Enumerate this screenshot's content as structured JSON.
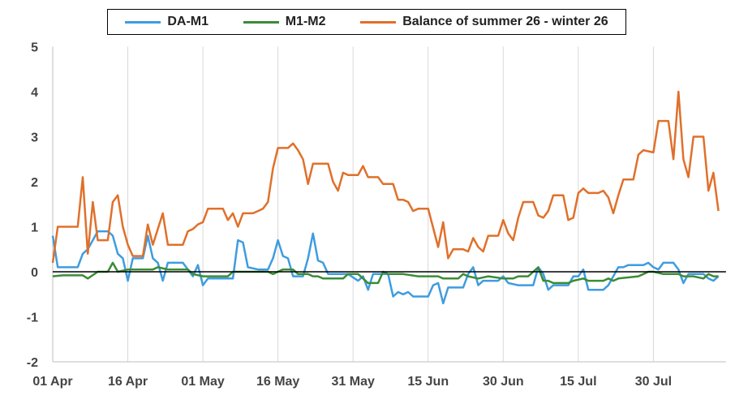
{
  "chart_data": {
    "type": "line",
    "title": "",
    "xlabel": "",
    "ylabel": "",
    "ylim": [
      -2,
      5
    ],
    "yticks": [
      -2,
      -1,
      0,
      1,
      2,
      3,
      4,
      5
    ],
    "x_axis": {
      "start": "01 Apr",
      "end": "05 Aug",
      "tick_labels": [
        "01 Apr",
        "16 Apr",
        "01 May",
        "16 May",
        "31 May",
        "15 Jun",
        "30 Jun",
        "15 Jul",
        "30 Jul"
      ]
    },
    "grid": "vertical",
    "zero_line": true,
    "legend_position": "top",
    "series": [
      {
        "name": "DA-M1",
        "color": "#3e9ce0",
        "points": [
          [
            0,
            0.8
          ],
          [
            1,
            0.1
          ],
          [
            5,
            0.1
          ],
          [
            6,
            0.4
          ],
          [
            7,
            0.5
          ],
          [
            9,
            0.9
          ],
          [
            11,
            0.9
          ],
          [
            12,
            0.8
          ],
          [
            13,
            0.4
          ],
          [
            14,
            0.3
          ],
          [
            15,
            -0.2
          ],
          [
            16,
            0.3
          ],
          [
            18,
            0.3
          ],
          [
            19,
            0.8
          ],
          [
            20,
            0.3
          ],
          [
            21,
            0.2
          ],
          [
            22,
            -0.2
          ],
          [
            23,
            0.2
          ],
          [
            26,
            0.2
          ],
          [
            27,
            0.05
          ],
          [
            28,
            -0.1
          ],
          [
            29,
            0.15
          ],
          [
            30,
            -0.3
          ],
          [
            31,
            -0.15
          ],
          [
            36,
            -0.15
          ],
          [
            37,
            0.7
          ],
          [
            38,
            0.65
          ],
          [
            39,
            0.1
          ],
          [
            41,
            0.05
          ],
          [
            43,
            0.05
          ],
          [
            44,
            0.3
          ],
          [
            45,
            0.7
          ],
          [
            46,
            0.35
          ],
          [
            47,
            0.3
          ],
          [
            48,
            -0.1
          ],
          [
            50,
            -0.1
          ],
          [
            51,
            0.3
          ],
          [
            52,
            0.85
          ],
          [
            53,
            0.25
          ],
          [
            54,
            0.2
          ],
          [
            55,
            -0.05
          ],
          [
            59,
            -0.05
          ],
          [
            61,
            -0.2
          ],
          [
            62,
            -0.1
          ],
          [
            63,
            -0.4
          ],
          [
            64,
            -0.05
          ],
          [
            67,
            -0.05
          ],
          [
            68,
            -0.55
          ],
          [
            69,
            -0.45
          ],
          [
            70,
            -0.5
          ],
          [
            71,
            -0.45
          ],
          [
            72,
            -0.55
          ],
          [
            75,
            -0.55
          ],
          [
            76,
            -0.3
          ],
          [
            77,
            -0.25
          ],
          [
            78,
            -0.7
          ],
          [
            79,
            -0.35
          ],
          [
            82,
            -0.35
          ],
          [
            83,
            -0.05
          ],
          [
            84,
            0.1
          ],
          [
            85,
            -0.3
          ],
          [
            86,
            -0.2
          ],
          [
            89,
            -0.2
          ],
          [
            90,
            -0.1
          ],
          [
            91,
            -0.25
          ],
          [
            93,
            -0.3
          ],
          [
            96,
            -0.3
          ],
          [
            97,
            0.1
          ],
          [
            98,
            -0.05
          ],
          [
            99,
            -0.4
          ],
          [
            100,
            -0.3
          ],
          [
            103,
            -0.3
          ],
          [
            104,
            -0.1
          ],
          [
            105,
            -0.1
          ],
          [
            106,
            0.05
          ],
          [
            107,
            -0.4
          ],
          [
            110,
            -0.4
          ],
          [
            111,
            -0.3
          ],
          [
            112,
            -0.1
          ],
          [
            113,
            0.1
          ],
          [
            114,
            0.1
          ],
          [
            115,
            0.15
          ],
          [
            118,
            0.15
          ],
          [
            119,
            0.2
          ],
          [
            120,
            0.1
          ],
          [
            121,
            0.05
          ],
          [
            122,
            0.2
          ],
          [
            124,
            0.2
          ],
          [
            125,
            0.05
          ],
          [
            126,
            -0.25
          ],
          [
            127,
            -0.05
          ],
          [
            130,
            -0.05
          ],
          [
            131,
            -0.15
          ],
          [
            132,
            -0.2
          ],
          [
            133,
            -0.1
          ]
        ]
      },
      {
        "name": "M1-M2",
        "color": "#3b8c36",
        "points": [
          [
            0,
            -0.1
          ],
          [
            2,
            -0.08
          ],
          [
            6,
            -0.08
          ],
          [
            7,
            -0.15
          ],
          [
            9,
            0.0
          ],
          [
            11,
            0.0
          ],
          [
            12,
            0.2
          ],
          [
            13,
            0.0
          ],
          [
            15,
            0.05
          ],
          [
            18,
            0.05
          ],
          [
            20,
            0.05
          ],
          [
            21,
            0.1
          ],
          [
            23,
            0.05
          ],
          [
            27,
            0.05
          ],
          [
            28,
            -0.05
          ],
          [
            30,
            -0.1
          ],
          [
            35,
            -0.1
          ],
          [
            36,
            0.0
          ],
          [
            43,
            0.0
          ],
          [
            44,
            -0.05
          ],
          [
            46,
            0.05
          ],
          [
            48,
            0.05
          ],
          [
            49,
            -0.05
          ],
          [
            51,
            -0.05
          ],
          [
            52,
            -0.1
          ],
          [
            53,
            -0.1
          ],
          [
            54,
            -0.15
          ],
          [
            58,
            -0.15
          ],
          [
            59,
            -0.05
          ],
          [
            61,
            -0.05
          ],
          [
            62,
            -0.15
          ],
          [
            63,
            -0.25
          ],
          [
            65,
            -0.25
          ],
          [
            66,
            0.0
          ],
          [
            67,
            -0.05
          ],
          [
            70,
            -0.05
          ],
          [
            73,
            -0.1
          ],
          [
            75,
            -0.1
          ],
          [
            77,
            -0.1
          ],
          [
            78,
            -0.15
          ],
          [
            81,
            -0.15
          ],
          [
            82,
            -0.05
          ],
          [
            83,
            -0.1
          ],
          [
            85,
            -0.15
          ],
          [
            87,
            -0.1
          ],
          [
            90,
            -0.15
          ],
          [
            92,
            -0.15
          ],
          [
            93,
            -0.1
          ],
          [
            95,
            -0.1
          ],
          [
            96,
            0.0
          ],
          [
            97,
            0.1
          ],
          [
            98,
            -0.2
          ],
          [
            99,
            -0.2
          ],
          [
            100,
            -0.25
          ],
          [
            103,
            -0.25
          ],
          [
            104,
            -0.2
          ],
          [
            106,
            -0.15
          ],
          [
            107,
            -0.2
          ],
          [
            110,
            -0.2
          ],
          [
            111,
            -0.15
          ],
          [
            112,
            -0.2
          ],
          [
            113,
            -0.15
          ],
          [
            117,
            -0.1
          ],
          [
            118,
            -0.05
          ],
          [
            119,
            0.0
          ],
          [
            120,
            0.0
          ],
          [
            122,
            -0.05
          ],
          [
            125,
            -0.05
          ],
          [
            126,
            -0.1
          ],
          [
            128,
            -0.1
          ],
          [
            130,
            -0.15
          ],
          [
            131,
            -0.05
          ],
          [
            132,
            -0.1
          ],
          [
            133,
            -0.1
          ]
        ]
      },
      {
        "name": "Balance of summer 26 - winter 26",
        "color": "#e0702a",
        "points": [
          [
            0,
            0.2
          ],
          [
            1,
            1.0
          ],
          [
            5,
            1.0
          ],
          [
            6,
            2.1
          ],
          [
            7,
            0.4
          ],
          [
            8,
            1.55
          ],
          [
            9,
            0.7
          ],
          [
            11,
            0.7
          ],
          [
            12,
            1.55
          ],
          [
            13,
            1.7
          ],
          [
            14,
            1.0
          ],
          [
            15,
            0.6
          ],
          [
            16,
            0.35
          ],
          [
            18,
            0.35
          ],
          [
            19,
            1.05
          ],
          [
            20,
            0.6
          ],
          [
            22,
            1.3
          ],
          [
            23,
            0.6
          ],
          [
            26,
            0.6
          ],
          [
            27,
            0.9
          ],
          [
            28,
            0.95
          ],
          [
            29,
            1.05
          ],
          [
            30,
            1.1
          ],
          [
            31,
            1.4
          ],
          [
            34,
            1.4
          ],
          [
            35,
            1.15
          ],
          [
            36,
            1.3
          ],
          [
            37,
            1.0
          ],
          [
            38,
            1.3
          ],
          [
            40,
            1.3
          ],
          [
            41,
            1.35
          ],
          [
            42,
            1.4
          ],
          [
            43,
            1.55
          ],
          [
            44,
            2.3
          ],
          [
            45,
            2.75
          ],
          [
            47,
            2.75
          ],
          [
            48,
            2.85
          ],
          [
            49,
            2.7
          ],
          [
            50,
            2.5
          ],
          [
            51,
            1.95
          ],
          [
            52,
            2.4
          ],
          [
            55,
            2.4
          ],
          [
            56,
            2.0
          ],
          [
            57,
            1.8
          ],
          [
            58,
            2.2
          ],
          [
            59,
            2.15
          ],
          [
            61,
            2.15
          ],
          [
            62,
            2.35
          ],
          [
            63,
            2.1
          ],
          [
            65,
            2.1
          ],
          [
            66,
            1.95
          ],
          [
            68,
            1.95
          ],
          [
            69,
            1.6
          ],
          [
            70,
            1.6
          ],
          [
            71,
            1.55
          ],
          [
            72,
            1.35
          ],
          [
            73,
            1.4
          ],
          [
            75,
            1.4
          ],
          [
            77,
            0.55
          ],
          [
            78,
            1.1
          ],
          [
            79,
            0.3
          ],
          [
            80,
            0.5
          ],
          [
            82,
            0.5
          ],
          [
            83,
            0.45
          ],
          [
            84,
            0.75
          ],
          [
            85,
            0.55
          ],
          [
            86,
            0.45
          ],
          [
            87,
            0.8
          ],
          [
            89,
            0.8
          ],
          [
            90,
            1.15
          ],
          [
            91,
            0.85
          ],
          [
            92,
            0.7
          ],
          [
            93,
            1.2
          ],
          [
            94,
            1.55
          ],
          [
            96,
            1.55
          ],
          [
            97,
            1.25
          ],
          [
            98,
            1.2
          ],
          [
            99,
            1.35
          ],
          [
            100,
            1.7
          ],
          [
            102,
            1.7
          ],
          [
            103,
            1.15
          ],
          [
            104,
            1.2
          ],
          [
            105,
            1.75
          ],
          [
            106,
            1.85
          ],
          [
            107,
            1.75
          ],
          [
            109,
            1.75
          ],
          [
            110,
            1.8
          ],
          [
            111,
            1.65
          ],
          [
            112,
            1.3
          ],
          [
            113,
            1.7
          ],
          [
            114,
            2.05
          ],
          [
            116,
            2.05
          ],
          [
            117,
            2.6
          ],
          [
            118,
            2.7
          ],
          [
            120,
            2.65
          ],
          [
            121,
            3.35
          ],
          [
            123,
            3.35
          ],
          [
            124,
            2.5
          ],
          [
            125,
            4.0
          ],
          [
            126,
            2.5
          ],
          [
            127,
            2.1
          ],
          [
            128,
            3.0
          ],
          [
            130,
            3.0
          ],
          [
            131,
            1.8
          ],
          [
            132,
            2.2
          ],
          [
            133,
            1.35
          ]
        ]
      }
    ]
  }
}
